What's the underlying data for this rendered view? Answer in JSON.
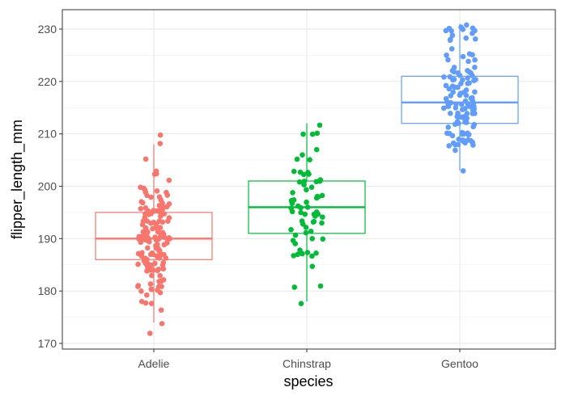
{
  "chart_data": {
    "type": "boxplot",
    "title": "",
    "xlabel": "species",
    "ylabel": "flipper_length_mm",
    "categories": [
      "Adelie",
      "Chinstrap",
      "Gentoo"
    ],
    "colors": [
      "#F8766D",
      "#00BA38",
      "#619CFF"
    ],
    "ylim": [
      169,
      232
    ],
    "yticks": [
      170,
      180,
      190,
      200,
      210,
      220,
      230
    ],
    "grid": true,
    "legend": "none",
    "boxes": [
      {
        "category": "Adelie",
        "lower_whisker": 174,
        "q1": 186,
        "median": 190,
        "q3": 195,
        "upper_whisker": 208
      },
      {
        "category": "Chinstrap",
        "lower_whisker": 178,
        "q1": 191,
        "median": 196,
        "q3": 201,
        "upper_whisker": 212
      },
      {
        "category": "Gentoo",
        "lower_whisker": 203,
        "q1": 212,
        "median": 216,
        "q3": 221,
        "upper_whisker": 231
      }
    ],
    "points": {
      "Adelie": [
        181,
        186,
        195,
        193,
        190,
        181,
        195,
        193,
        190,
        186,
        180,
        182,
        191,
        198,
        185,
        195,
        197,
        184,
        194,
        174,
        180,
        189,
        185,
        180,
        187,
        183,
        187,
        172,
        180,
        178,
        178,
        188,
        184,
        195,
        196,
        190,
        180,
        181,
        184,
        182,
        195,
        186,
        196,
        185,
        190,
        182,
        179,
        190,
        191,
        186,
        188,
        190,
        200,
        187,
        191,
        186,
        193,
        181,
        194,
        185,
        195,
        185,
        192,
        184,
        192,
        195,
        188,
        190,
        198,
        190,
        190,
        196,
        197,
        190,
        195,
        191,
        184,
        187,
        195,
        189,
        196,
        187,
        193,
        191,
        194,
        190,
        189,
        189,
        190,
        202,
        205,
        185,
        186,
        187,
        208,
        190,
        196,
        178,
        192,
        192,
        203,
        183,
        190,
        193,
        184,
        199,
        190,
        181,
        197,
        198,
        191,
        193,
        197,
        191,
        196,
        188,
        199,
        189,
        189,
        187,
        198,
        176,
        202,
        186,
        199,
        191,
        195,
        191,
        210,
        190,
        197,
        193,
        199,
        187,
        190,
        191,
        200,
        185,
        193,
        193,
        187,
        188,
        190,
        192,
        185,
        190,
        184,
        195,
        193,
        187,
        201
      ],
      "Chinstrap": [
        192,
        196,
        193,
        188,
        197,
        198,
        178,
        197,
        195,
        198,
        193,
        194,
        185,
        201,
        190,
        201,
        197,
        181,
        190,
        195,
        181,
        191,
        187,
        193,
        195,
        197,
        200,
        200,
        191,
        205,
        187,
        201,
        187,
        203,
        195,
        199,
        195,
        210,
        192,
        205,
        210,
        187,
        196,
        196,
        196,
        201,
        190,
        212,
        187,
        198,
        199,
        201,
        193,
        203,
        187,
        197,
        191,
        203,
        202,
        194,
        206,
        189,
        195,
        207,
        202,
        193,
        210,
        198
      ],
      "Gentoo": [
        211,
        230,
        210,
        218,
        215,
        210,
        211,
        219,
        209,
        215,
        214,
        216,
        214,
        213,
        210,
        217,
        210,
        221,
        209,
        222,
        218,
        215,
        213,
        215,
        215,
        215,
        216,
        215,
        210,
        220,
        222,
        209,
        207,
        230,
        220,
        220,
        213,
        219,
        208,
        208,
        208,
        225,
        210,
        216,
        222,
        217,
        210,
        225,
        213,
        215,
        210,
        220,
        210,
        225,
        217,
        220,
        208,
        220,
        208,
        224,
        208,
        221,
        214,
        231,
        219,
        230,
        214,
        229,
        220,
        223,
        216,
        221,
        221,
        217,
        216,
        230,
        209,
        220,
        215,
        223,
        212,
        221,
        212,
        224,
        212,
        228,
        218,
        218,
        212,
        230,
        218,
        228,
        212,
        224,
        214,
        226,
        216,
        222,
        203,
        225,
        219,
        228,
        215,
        228,
        216,
        215,
        210,
        219,
        208,
        209,
        216,
        229,
        213,
        230,
        217,
        230,
        217,
        222,
        214,
        215,
        222,
        212,
        213
      ]
    }
  }
}
